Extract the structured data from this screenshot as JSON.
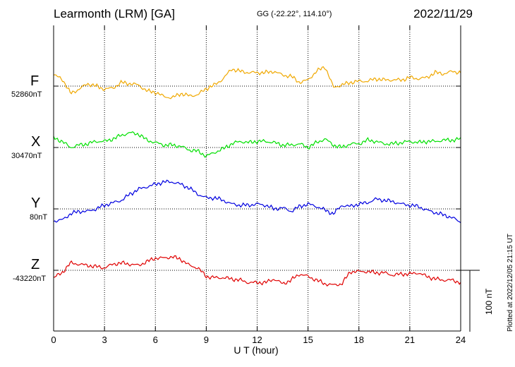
{
  "header": {
    "station": "Learmonth (LRM)  [GA]",
    "coords": "GG (-22.22°, 114.10°)",
    "date": "2022/11/29"
  },
  "footer": {
    "plotted": "Plotted at 2022/12/05 21:15 UT"
  },
  "chart_data": {
    "type": "line",
    "title": "Learmonth (LRM)  [GA]",
    "xlabel": "U T (hour)",
    "xlim": [
      0,
      24
    ],
    "x_ticks": [
      "0",
      "3",
      "6",
      "9",
      "12",
      "15",
      "18",
      "21",
      "24"
    ],
    "grid": true,
    "scale_bar": {
      "label": "100 nT",
      "value": 100
    },
    "x": [
      0,
      0.5,
      1,
      1.5,
      2,
      2.5,
      3,
      3.5,
      4,
      4.5,
      5,
      5.5,
      6,
      6.5,
      7,
      7.5,
      8,
      8.5,
      9,
      9.5,
      10,
      10.5,
      11,
      11.5,
      12,
      12.5,
      13,
      13.5,
      14,
      14.5,
      15,
      15.5,
      16,
      16.5,
      17,
      17.5,
      18,
      18.5,
      19,
      19.5,
      20,
      20.5,
      21,
      21.5,
      22,
      22.5,
      23,
      23.5,
      24
    ],
    "series": [
      {
        "name": "F",
        "baseline": "52860nT",
        "color": "#f0a800",
        "values": [
          18,
          12,
          -12,
          -5,
          4,
          0,
          -5,
          -3,
          6,
          4,
          2,
          -8,
          -10,
          -17,
          -19,
          -12,
          -16,
          -14,
          -4,
          2,
          12,
          28,
          24,
          22,
          22,
          22,
          24,
          18,
          16,
          6,
          10,
          24,
          32,
          -2,
          2,
          6,
          8,
          8,
          12,
          10,
          10,
          10,
          14,
          12,
          14,
          22,
          20,
          24,
          22
        ]
      },
      {
        "name": "X",
        "baseline": "30470nT",
        "color": "#00e000",
        "values": [
          16,
          10,
          0,
          4,
          6,
          10,
          10,
          14,
          20,
          24,
          22,
          12,
          8,
          4,
          4,
          2,
          -4,
          -6,
          -14,
          -8,
          -2,
          6,
          10,
          8,
          10,
          10,
          8,
          4,
          4,
          6,
          0,
          8,
          14,
          4,
          0,
          6,
          6,
          12,
          10,
          6,
          6,
          8,
          10,
          8,
          10,
          10,
          12,
          12,
          14
        ]
      },
      {
        "name": "Y",
        "baseline": "80nT",
        "color": "#0000e0",
        "values": [
          -20,
          -18,
          -8,
          -4,
          -4,
          0,
          6,
          10,
          14,
          24,
          32,
          36,
          40,
          44,
          44,
          40,
          34,
          24,
          18,
          18,
          14,
          8,
          6,
          6,
          8,
          6,
          0,
          2,
          -4,
          4,
          8,
          4,
          -2,
          -8,
          6,
          4,
          8,
          10,
          16,
          14,
          12,
          8,
          6,
          4,
          -2,
          -6,
          -10,
          -14,
          -22
        ]
      },
      {
        "name": "Z",
        "baseline": "-43220nT",
        "color": "#e00000",
        "values": [
          -12,
          -4,
          12,
          10,
          8,
          6,
          4,
          10,
          12,
          10,
          8,
          14,
          20,
          20,
          22,
          18,
          8,
          4,
          -10,
          -12,
          -12,
          -14,
          -16,
          -20,
          -20,
          -20,
          -14,
          -22,
          -16,
          -6,
          -10,
          -16,
          -22,
          -24,
          -22,
          -2,
          -2,
          -2,
          -4,
          -4,
          -8,
          -6,
          -6,
          -4,
          -10,
          -14,
          -16,
          -16,
          -20
        ]
      }
    ]
  }
}
